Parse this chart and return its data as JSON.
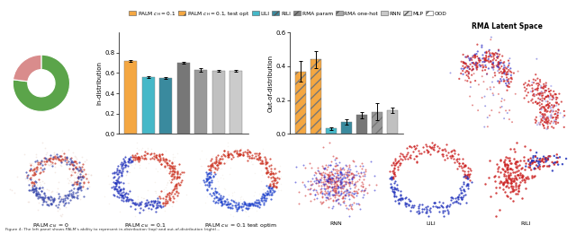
{
  "legend_colors": [
    "#F4A742",
    "#F4A742",
    "#45B8C8",
    "#3A8A9E",
    "#888888",
    "#AAAAAA",
    "#C8C8C8",
    "#DDDDDD",
    "#FFFFFF"
  ],
  "legend_hatches": [
    "",
    "///",
    "",
    "///",
    "///",
    "///",
    "",
    "///",
    "///"
  ],
  "legend_labels": [
    "PALM $c_H$$=$$0.1$",
    "PALM $c_H$$=$$0.1$, test opt",
    "LILI",
    "RILI",
    "RMA param",
    "RMA one-hot",
    "RNN",
    "MLP",
    "OOD"
  ],
  "pie_sizes": [
    0.77,
    0.23
  ],
  "pie_colors": [
    "#5BA44A",
    "#D98C8C"
  ],
  "in_dist_values": [
    0.72,
    0.56,
    0.55,
    0.7,
    0.63,
    0.62,
    0.62
  ],
  "in_dist_errors": [
    0.008,
    0.008,
    0.008,
    0.01,
    0.02,
    0.008,
    0.008
  ],
  "in_dist_colors": [
    "#F4A742",
    "#45B8C8",
    "#3A8A9E",
    "#777777",
    "#999999",
    "#C0C0C0",
    "#CBCBCB"
  ],
  "in_dist_ylabel": "In-distribution",
  "ood_values": [
    0.37,
    0.44,
    0.03,
    0.07,
    0.11,
    0.13,
    0.14
  ],
  "ood_errors": [
    0.06,
    0.05,
    0.01,
    0.015,
    0.02,
    0.05,
    0.015
  ],
  "ood_colors": [
    "#F4A742",
    "#F4A742",
    "#45B8C8",
    "#3A8A9E",
    "#777777",
    "#999999",
    "#C0C0C0"
  ],
  "ood_hatches": [
    "///",
    "///",
    "",
    "",
    "///",
    "///",
    ""
  ],
  "ood_ylabel": "Out-of-distribution",
  "scatter_labels": [
    "PALM $c_{kl}$ = 0",
    "PALM $c_{kl}$ = 0.1",
    "PALM $c_{kl}$ = 0.1 test optim",
    "RNN",
    "LILI",
    "RILI"
  ],
  "rma_label": "RMA Latent Space",
  "caption": "Figure 4: The left panel shows PALM's ability to represent in-distribution (top) and out-of-distribution (right)..."
}
